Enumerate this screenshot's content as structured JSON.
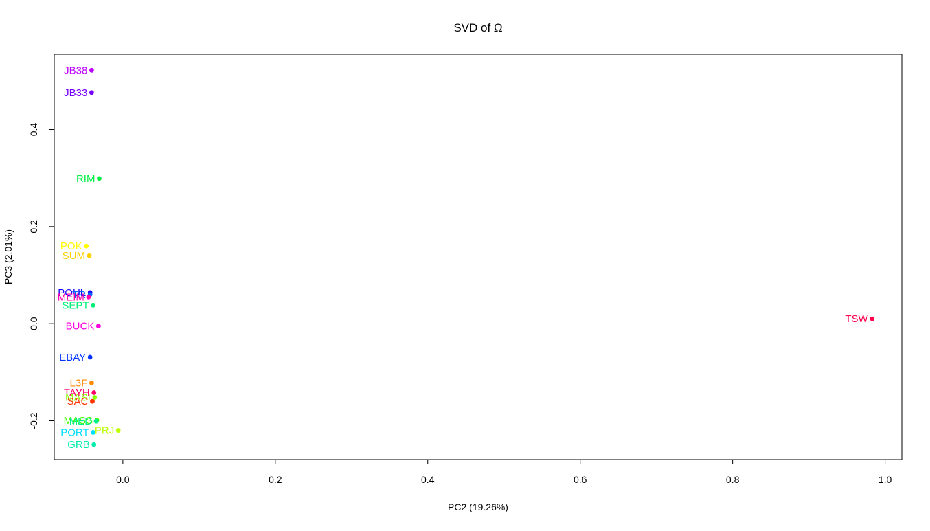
{
  "chart_data": {
    "type": "scatter",
    "title": "SVD of Ω",
    "xlabel": "PC2 (19.26%)",
    "ylabel": "PC3 (2.01%)",
    "xlim": [
      -0.09,
      1.022
    ],
    "ylim": [
      -0.28,
      0.555
    ],
    "xticks": [
      {
        "value": 0.0,
        "label": "0.0"
      },
      {
        "value": 0.2,
        "label": "0.2"
      },
      {
        "value": 0.4,
        "label": "0.4"
      },
      {
        "value": 0.6,
        "label": "0.6"
      },
      {
        "value": 0.8,
        "label": "0.8"
      },
      {
        "value": 1.0,
        "label": "1.0"
      }
    ],
    "yticks": [
      {
        "value": -0.2,
        "label": "-0.2"
      },
      {
        "value": 0.0,
        "label": "0.0"
      },
      {
        "value": 0.2,
        "label": "0.2"
      },
      {
        "value": 0.4,
        "label": "0.4"
      }
    ],
    "grid": false,
    "points": [
      {
        "label": "JB38",
        "x": -0.041,
        "y": 0.522,
        "color": "#bb00ff"
      },
      {
        "label": "JB33",
        "x": -0.041,
        "y": 0.476,
        "color": "#7700ff"
      },
      {
        "label": "RIM",
        "x": -0.031,
        "y": 0.299,
        "color": "#00ee44"
      },
      {
        "label": "POK",
        "x": -0.048,
        "y": 0.16,
        "color": "#ffff00"
      },
      {
        "label": "SUM",
        "x": -0.044,
        "y": 0.14,
        "color": "#ffd000"
      },
      {
        "label": "POUL",
        "x": -0.043,
        "y": 0.064,
        "color": "#1a00ff"
      },
      {
        "label": "TR",
        "x": -0.043,
        "y": 0.06,
        "color": "#0066ff"
      },
      {
        "label": "MEIM",
        "x": -0.045,
        "y": 0.055,
        "color": "#ff00aa"
      },
      {
        "label": "SEPT",
        "x": -0.039,
        "y": 0.038,
        "color": "#00ee77"
      },
      {
        "label": "BUCK",
        "x": -0.032,
        "y": -0.005,
        "color": "#ff00dd"
      },
      {
        "label": "TSW",
        "x": 0.983,
        "y": 0.01,
        "color": "#ff004d"
      },
      {
        "label": "EBAY",
        "x": -0.043,
        "y": -0.069,
        "color": "#0033ff"
      },
      {
        "label": "L3F",
        "x": -0.041,
        "y": -0.122,
        "color": "#ff8800"
      },
      {
        "label": "TAYH",
        "x": -0.038,
        "y": -0.142,
        "color": "#ff0066"
      },
      {
        "label": "MASI",
        "x": -0.037,
        "y": -0.152,
        "color": "#88ff00"
      },
      {
        "label": "SAC",
        "x": -0.04,
        "y": -0.16,
        "color": "#ff3300"
      },
      {
        "label": "MASS",
        "x": -0.034,
        "y": -0.199,
        "color": "#44ff00"
      },
      {
        "label": "MED",
        "x": -0.035,
        "y": -0.201,
        "color": "#00ee88"
      },
      {
        "label": "PRJ",
        "x": -0.006,
        "y": -0.22,
        "color": "#bbff00"
      },
      {
        "label": "PORT",
        "x": -0.039,
        "y": -0.224,
        "color": "#00ddff"
      },
      {
        "label": "GRB",
        "x": -0.038,
        "y": -0.249,
        "color": "#00eeaa"
      }
    ]
  }
}
